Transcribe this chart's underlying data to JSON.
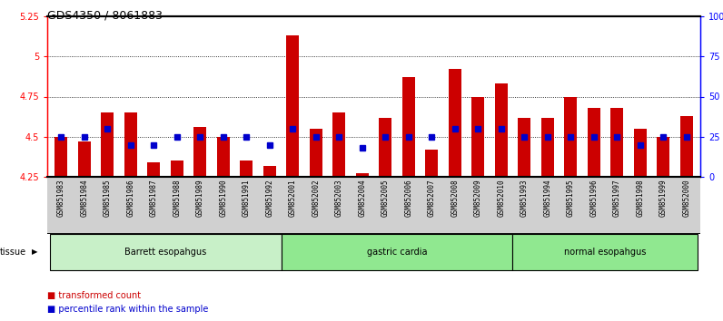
{
  "title": "GDS4350 / 8061883",
  "samples": [
    "GSM851983",
    "GSM851984",
    "GSM851985",
    "GSM851986",
    "GSM851987",
    "GSM851988",
    "GSM851989",
    "GSM851990",
    "GSM851991",
    "GSM851992",
    "GSM852001",
    "GSM852002",
    "GSM852003",
    "GSM852004",
    "GSM852005",
    "GSM852006",
    "GSM852007",
    "GSM852008",
    "GSM852009",
    "GSM852010",
    "GSM851993",
    "GSM851994",
    "GSM851995",
    "GSM851996",
    "GSM851997",
    "GSM851998",
    "GSM851999",
    "GSM852000"
  ],
  "transformed_count": [
    4.5,
    4.47,
    4.65,
    4.65,
    4.34,
    4.35,
    4.56,
    4.5,
    4.35,
    4.32,
    5.13,
    4.55,
    4.65,
    4.27,
    4.62,
    4.87,
    4.42,
    4.92,
    4.75,
    4.83,
    4.62,
    4.62,
    4.75,
    4.68,
    4.68,
    4.55,
    4.5,
    4.63
  ],
  "percentile_rank": [
    25,
    25,
    30,
    20,
    20,
    25,
    25,
    25,
    25,
    20,
    30,
    25,
    25,
    18,
    25,
    25,
    25,
    30,
    30,
    30,
    25,
    25,
    25,
    25,
    25,
    20,
    25,
    25
  ],
  "groups": [
    {
      "label": "Barrett esopahgus",
      "start": 0,
      "end": 9,
      "color": "#c8f0c8"
    },
    {
      "label": "gastric cardia",
      "start": 10,
      "end": 19,
      "color": "#90e890"
    },
    {
      "label": "normal esopahgus",
      "start": 20,
      "end": 27,
      "color": "#90e890"
    }
  ],
  "bar_color": "#cc0000",
  "dot_color": "#0000cc",
  "bar_bottom": 4.25,
  "ylim_left": [
    4.25,
    5.25
  ],
  "ylim_right": [
    0,
    100
  ],
  "yticks_left": [
    4.25,
    4.5,
    4.75,
    5.0,
    5.25
  ],
  "yticks_right": [
    0,
    25,
    50,
    75,
    100
  ],
  "ytick_labels_left": [
    "4.25",
    "4.5",
    "4.75",
    "5",
    "5.25"
  ],
  "ytick_labels_right": [
    "0",
    "25",
    "50",
    "75",
    "100%"
  ],
  "grid_values": [
    4.5,
    4.75,
    5.0
  ],
  "legend_items": [
    {
      "color": "#cc0000",
      "label": "transformed count"
    },
    {
      "color": "#0000cc",
      "label": "percentile rank within the sample"
    }
  ],
  "tissue_label": "tissue",
  "xtick_bg": "#d0d0d0",
  "plot_bg": "#ffffff"
}
